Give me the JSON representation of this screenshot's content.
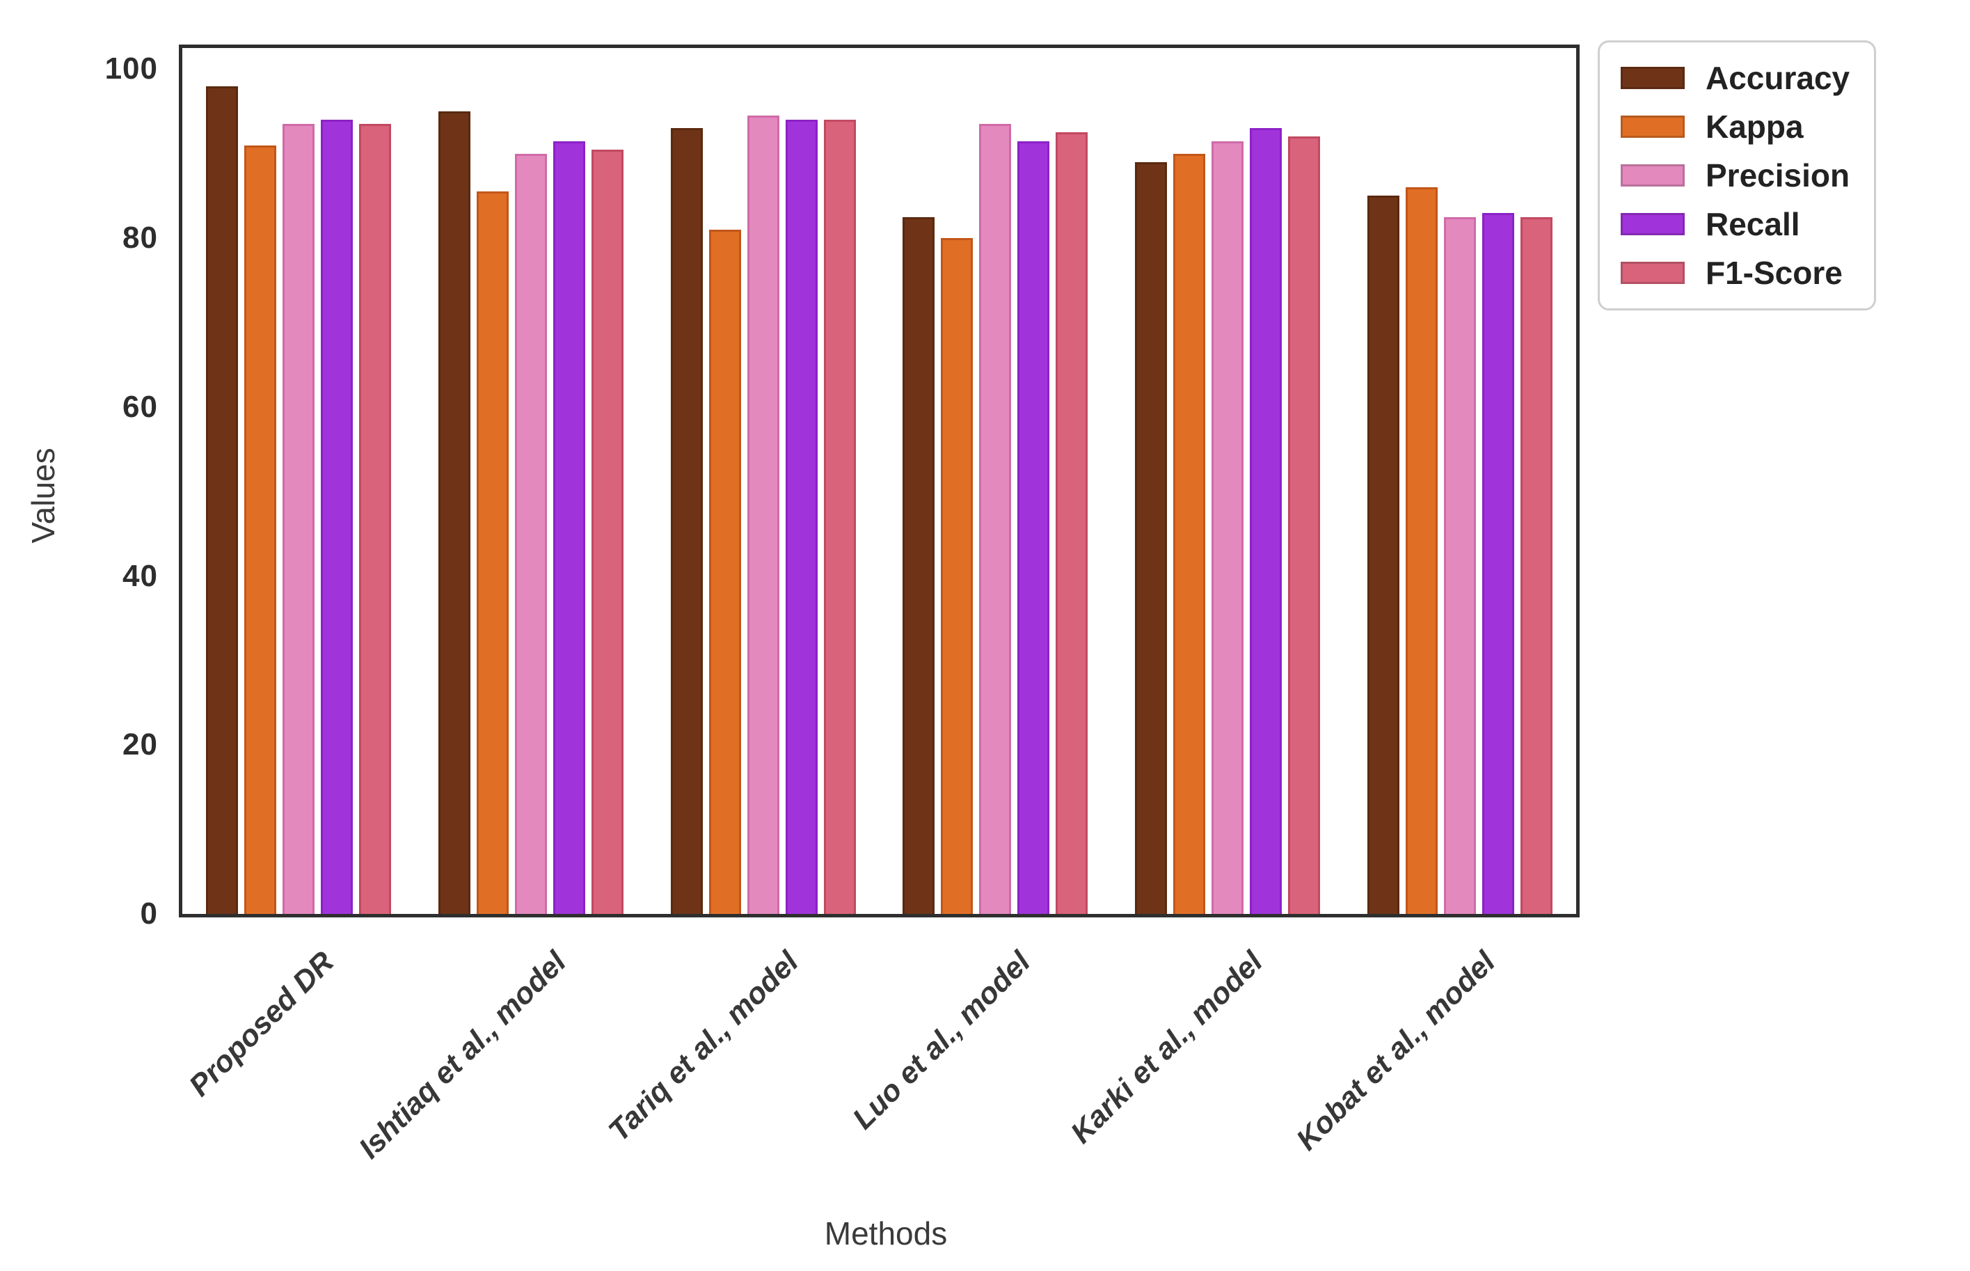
{
  "figure": {
    "background": "#ffffff",
    "axis_color": "#2e2e2e"
  },
  "chart_data": {
    "type": "bar",
    "title": "",
    "xlabel": "Methods",
    "ylabel": "Values",
    "ylim": [
      0,
      102.5
    ],
    "yticks": [
      0,
      20,
      40,
      60,
      80,
      100
    ],
    "grid": false,
    "legend_position": "top-right-outside",
    "categories": [
      "Proposed DR",
      "Ishtiaq et al., model",
      "Tariq et al., model",
      "Luo et al., model",
      "Karki et al., model",
      "Kobat et al., model"
    ],
    "series": [
      {
        "name": "Accuracy",
        "color": "#6F3417",
        "edge_color": "#5A2910",
        "values": [
          98,
          95,
          93,
          82.5,
          89,
          85
        ]
      },
      {
        "name": "Kappa",
        "color": "#E06F25",
        "edge_color": "#C2571A",
        "values": [
          91,
          85.5,
          81,
          80,
          90,
          86
        ]
      },
      {
        "name": "Precision",
        "color": "#E389BE",
        "edge_color": "#D06BA8",
        "values": [
          93.5,
          90,
          94.5,
          93.5,
          91.5,
          82.5
        ]
      },
      {
        "name": "Recall",
        "color": "#A133DB",
        "edge_color": "#8B22C6",
        "values": [
          94,
          91.5,
          94,
          91.5,
          93,
          83
        ]
      },
      {
        "name": "F1-Score",
        "color": "#D9637A",
        "edge_color": "#C24961",
        "values": [
          93.5,
          90.5,
          94,
          92.5,
          92,
          82.5
        ]
      }
    ]
  }
}
